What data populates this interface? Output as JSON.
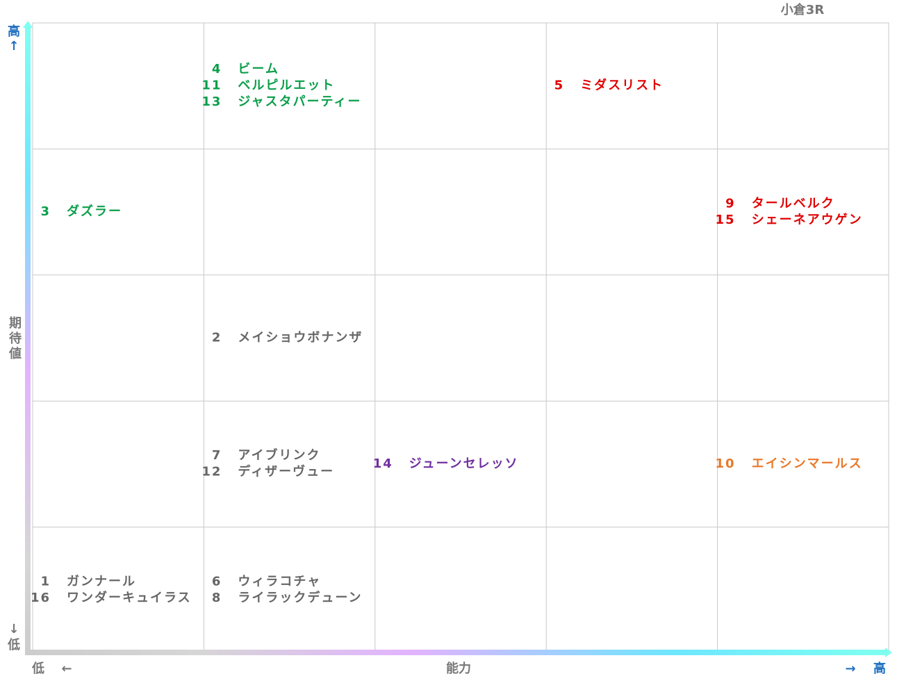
{
  "title": "小倉3R",
  "y_axis": {
    "label": "期待値",
    "high": "高",
    "high_arrow": "↑",
    "low": "低",
    "low_arrow": "↓"
  },
  "x_axis": {
    "label": "能力",
    "low": "低",
    "low_arrow": "←",
    "high": "高",
    "high_arrow": "→"
  },
  "grid": {
    "rows": [
      [
        [],
        [
          {
            "number": 4,
            "name": "ビーム",
            "color": "#0a9e4a"
          },
          {
            "number": 11,
            "name": "ベルピルエット",
            "color": "#0a9e4a"
          },
          {
            "number": 13,
            "name": "ジャスタパーティー",
            "color": "#0a9e4a"
          }
        ],
        [],
        [
          {
            "number": 5,
            "name": "ミダスリスト",
            "color": "#e00000"
          }
        ],
        []
      ],
      [
        [
          {
            "number": 3,
            "name": "ダズラー",
            "color": "#0a9e4a"
          }
        ],
        [],
        [],
        [],
        [
          {
            "number": 9,
            "name": "タールベルク",
            "color": "#e00000"
          },
          {
            "number": 15,
            "name": "シェーネアウゲン",
            "color": "#e00000"
          }
        ]
      ],
      [
        [],
        [
          {
            "number": 2,
            "name": "メイショウボナンザ",
            "color": "#666666"
          }
        ],
        [],
        [],
        []
      ],
      [
        [],
        [
          {
            "number": 7,
            "name": "アイブリンク",
            "color": "#666666"
          },
          {
            "number": 12,
            "name": "ディザーヴュー",
            "color": "#666666"
          }
        ],
        [
          {
            "number": 14,
            "name": "ジューンセレッソ",
            "color": "#7030a0"
          }
        ],
        [],
        [
          {
            "number": 10,
            "name": "エイシンマールス",
            "color": "#e8782a"
          }
        ]
      ],
      [
        [
          {
            "number": 1,
            "name": "ガンナール",
            "color": "#666666"
          },
          {
            "number": 16,
            "name": "ワンダーキュイラス",
            "color": "#666666"
          }
        ],
        [
          {
            "number": 6,
            "name": "ウィラコチャ",
            "color": "#666666"
          },
          {
            "number": 8,
            "name": "ライラックデューン",
            "color": "#666666"
          }
        ],
        [],
        [],
        []
      ]
    ]
  }
}
